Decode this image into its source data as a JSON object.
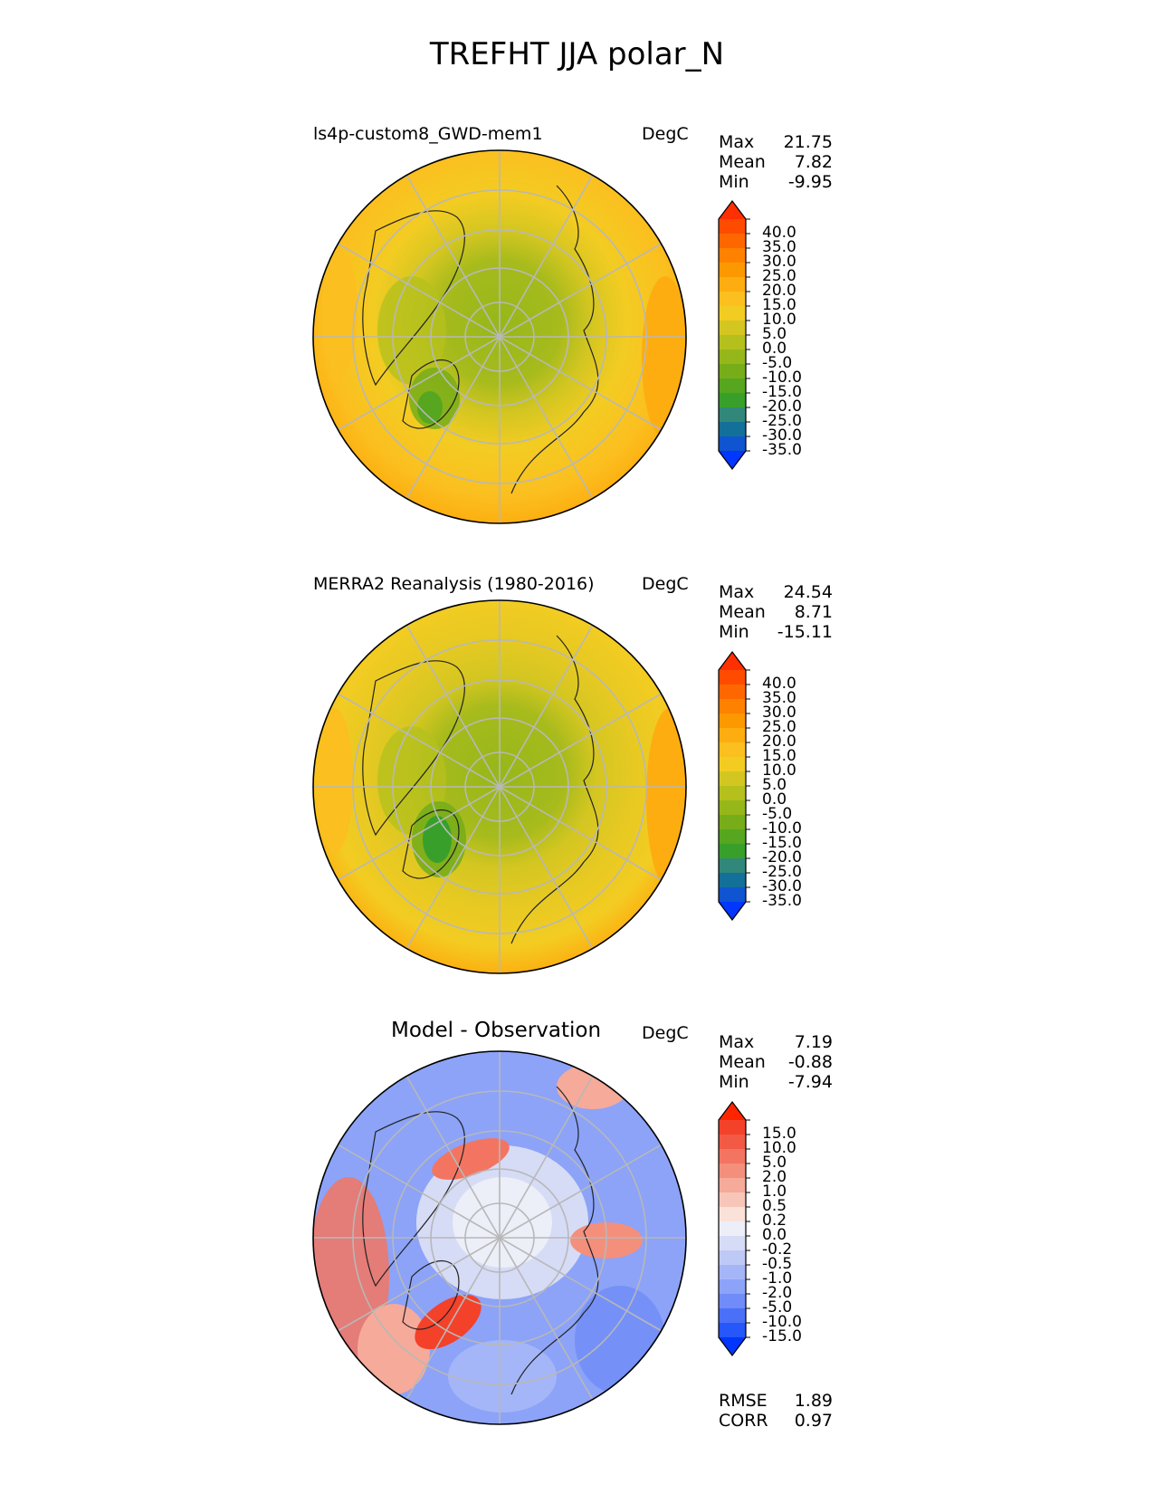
{
  "figure": {
    "title": "TREFHT JJA polar_N"
  },
  "panels": [
    {
      "title": "ls4p-custom8_GWD-mem1",
      "units": "DegC",
      "stats": {
        "max_label": "Max",
        "max": "21.75",
        "mean_label": "Mean",
        "mean": "7.82",
        "min_label": "Min",
        "min": "-9.95"
      }
    },
    {
      "title": "MERRA2 Reanalysis (1980-2016)",
      "units": "DegC",
      "stats": {
        "max_label": "Max",
        "max": "24.54",
        "mean_label": "Mean",
        "mean": "8.71",
        "min_label": "Min",
        "min": "-15.11"
      }
    },
    {
      "title": "Model - Observation",
      "units": "DegC",
      "stats": {
        "max_label": "Max",
        "max": "7.19",
        "mean_label": "Mean",
        "mean": "-0.88",
        "min_label": "Min",
        "min": "-7.94"
      },
      "metrics": {
        "rmse_label": "RMSE",
        "rmse": "1.89",
        "corr_label": "CORR",
        "corr": "0.97"
      }
    }
  ],
  "colorbars": {
    "temperature": {
      "labels": [
        "40.0",
        "35.0",
        "30.0",
        "25.0",
        "20.0",
        "15.0",
        "10.0",
        "5.0",
        "0.0",
        "-5.0",
        "-10.0",
        "-15.0",
        "-20.0",
        "-25.0",
        "-30.0",
        "-35.0"
      ],
      "colors": [
        "#fe2f00",
        "#fe4b00",
        "#fe6700",
        "#fe8100",
        "#fd9900",
        "#fdad0f",
        "#fbbf1f",
        "#f3cc22",
        "#d4c621",
        "#b5c01d",
        "#96b71a",
        "#77ad19",
        "#56a61f",
        "#38a02a",
        "#30877a",
        "#137099",
        "#0f54d0",
        "#0036fd"
      ]
    },
    "difference": {
      "labels": [
        "15.0",
        "10.0",
        "5.0",
        "2.0",
        "1.0",
        "0.5",
        "0.2",
        "0.0",
        "-0.2",
        "-0.5",
        "-1.0",
        "-2.0",
        "-5.0",
        "-10.0",
        "-15.0"
      ],
      "colors": [
        "#fe2400",
        "#f4412a",
        "#f25a45",
        "#f37561",
        "#f48f7c",
        "#f6aa9a",
        "#f8c6b9",
        "#fbe2d9",
        "#eceef8",
        "#d6dcf6",
        "#bfc9f6",
        "#a5b6f8",
        "#8ca3f8",
        "#6f8cf8",
        "#4b70f8",
        "#2557fa",
        "#0036fd"
      ]
    }
  },
  "chart_data": [
    {
      "type": "heatmap",
      "projection": "north-polar-stereographic",
      "title": "ls4p-custom8_GWD-mem1",
      "units": "DegC",
      "max": 21.75,
      "mean": 7.82,
      "min": -9.95,
      "color_levels": [
        -35,
        -30,
        -25,
        -20,
        -15,
        -10,
        -5,
        0,
        5,
        10,
        15,
        20,
        25,
        30,
        35,
        40
      ],
      "extend": "both"
    },
    {
      "type": "heatmap",
      "projection": "north-polar-stereographic",
      "title": "MERRA2 Reanalysis (1980-2016)",
      "units": "DegC",
      "max": 24.54,
      "mean": 8.71,
      "min": -15.11,
      "color_levels": [
        -35,
        -30,
        -25,
        -20,
        -15,
        -10,
        -5,
        0,
        5,
        10,
        15,
        20,
        25,
        30,
        35,
        40
      ],
      "extend": "both"
    },
    {
      "type": "heatmap",
      "projection": "north-polar-stereographic",
      "title": "Model - Observation",
      "units": "DegC",
      "max": 7.19,
      "mean": -0.88,
      "min": -7.94,
      "rmse": 1.89,
      "corr": 0.97,
      "color_levels": [
        -15,
        -10,
        -5,
        -2,
        -1,
        -0.5,
        -0.2,
        0,
        0.2,
        0.5,
        1,
        2,
        5,
        10,
        15
      ],
      "extend": "both"
    }
  ]
}
